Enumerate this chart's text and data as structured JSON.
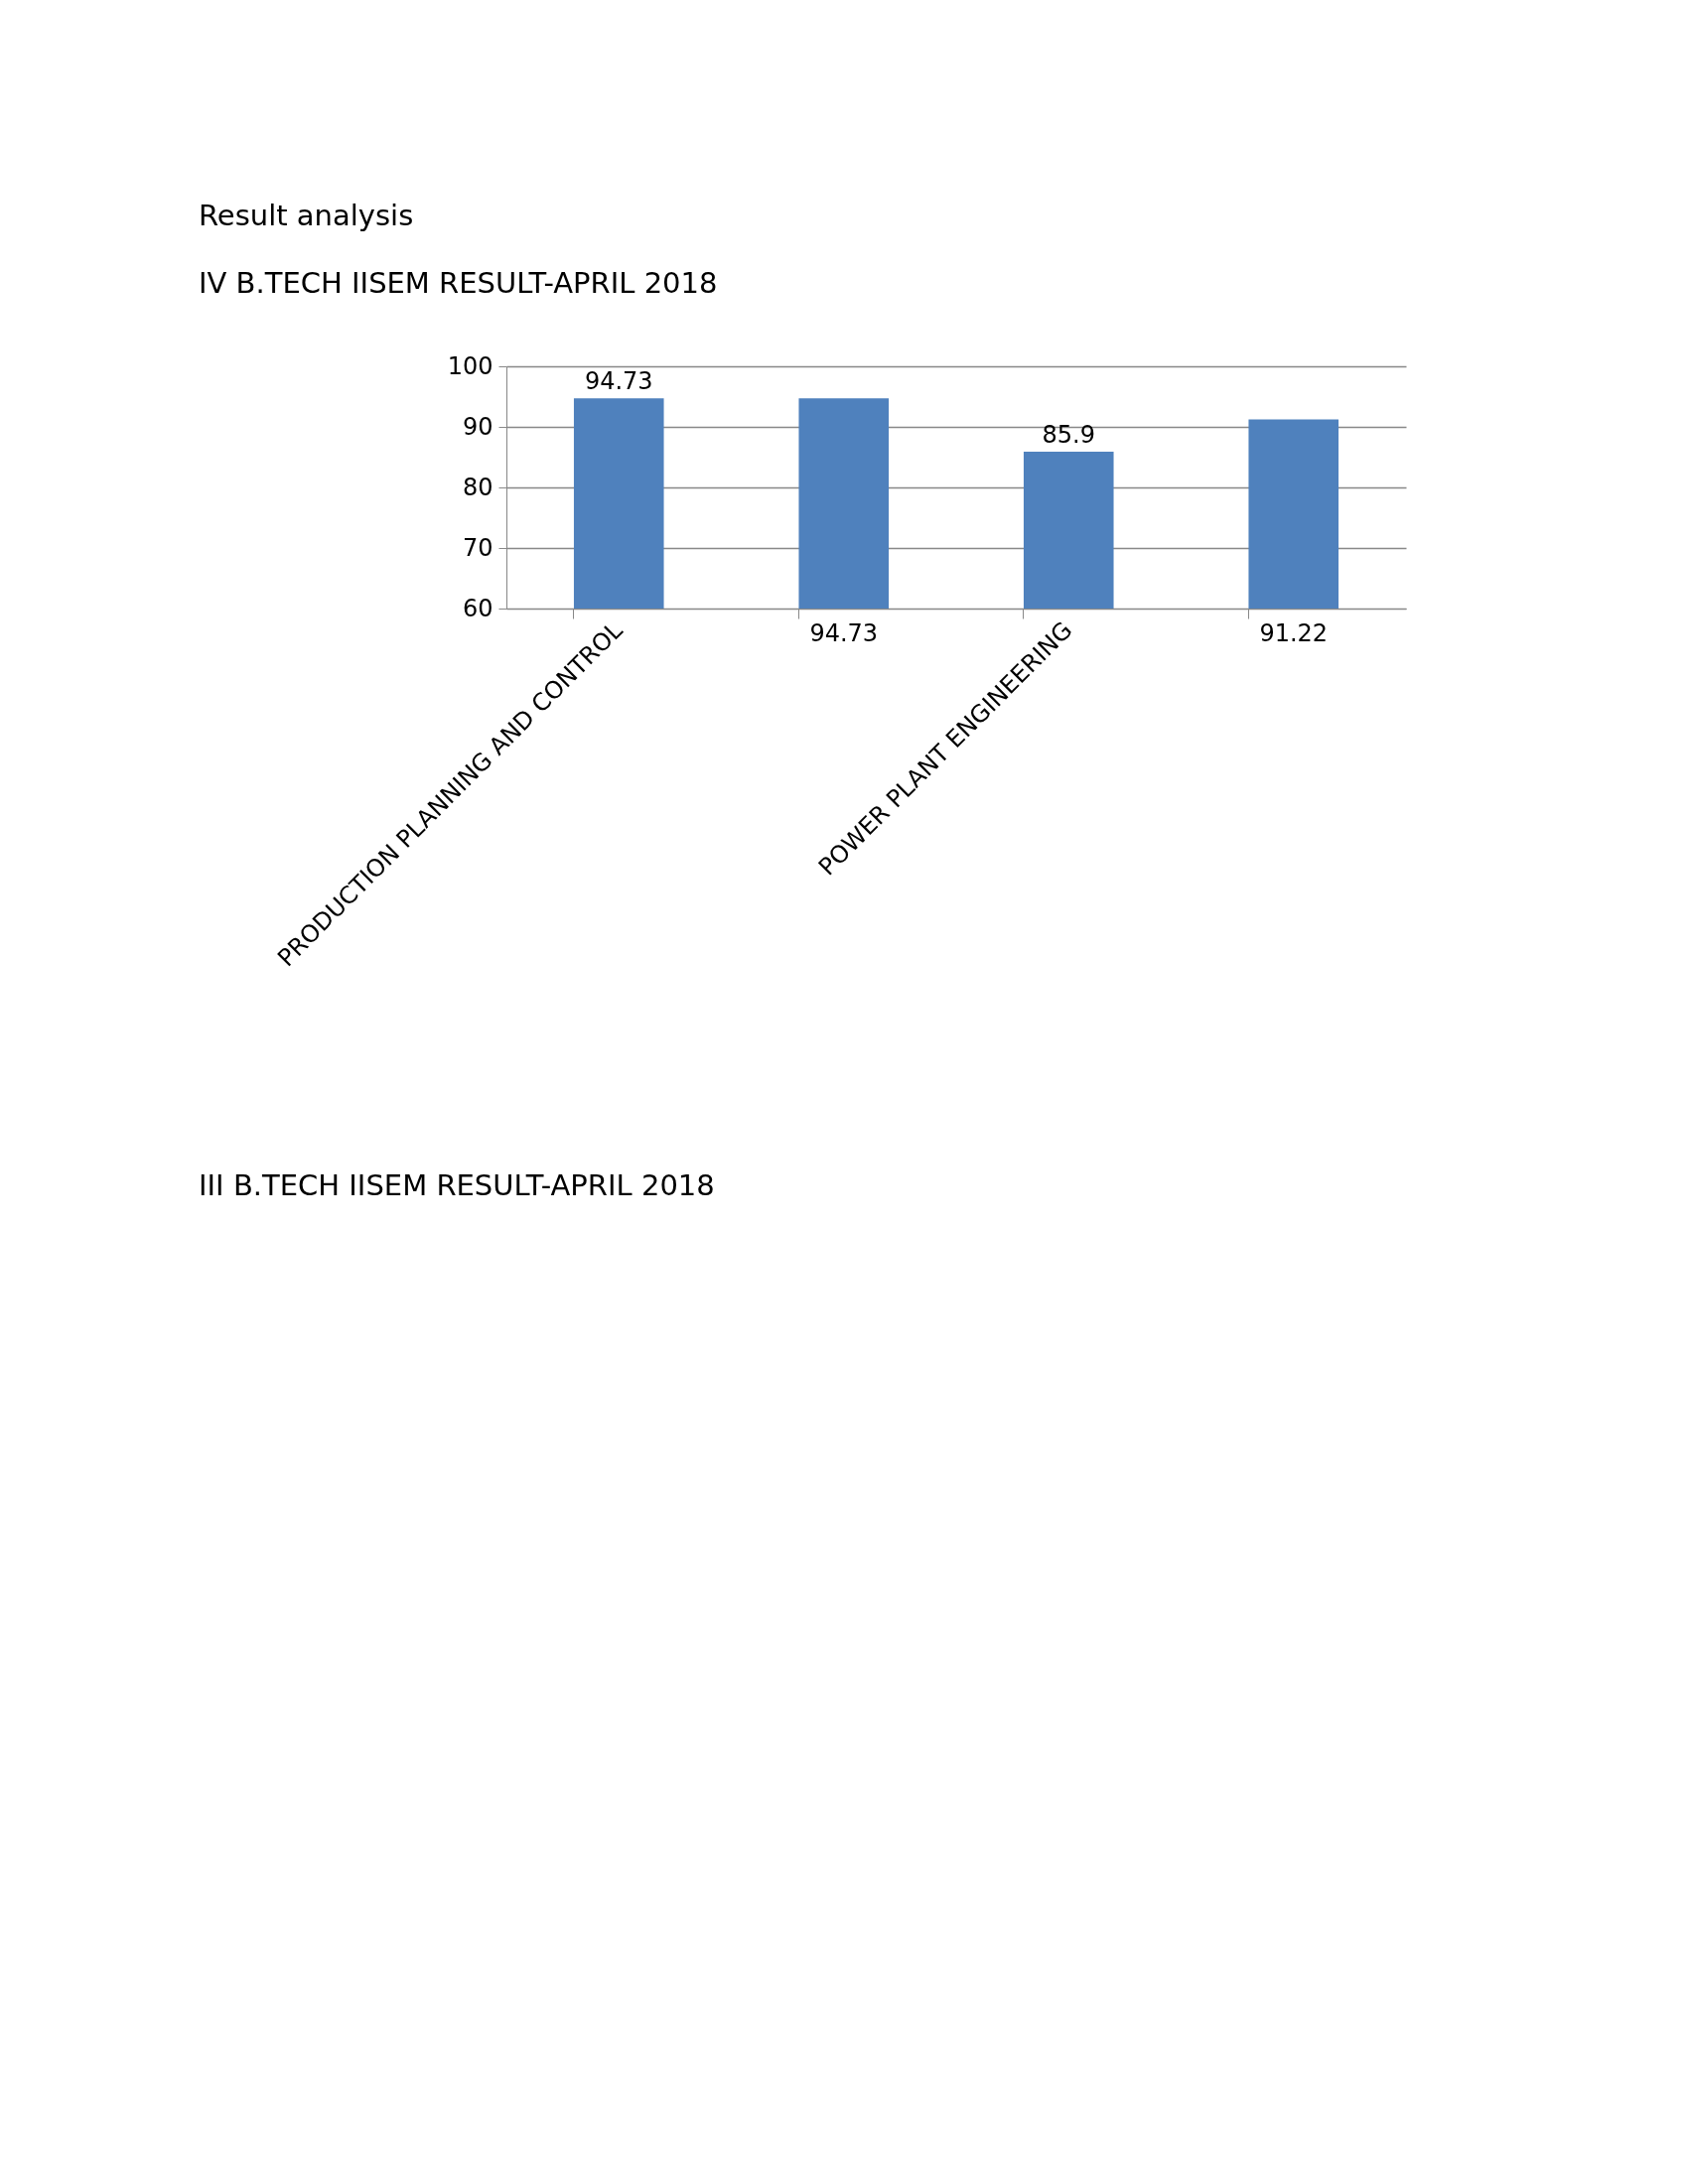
{
  "chart_data": {
    "type": "bar",
    "title": "Result analysis",
    "subtitle": "IV B.TECH IISEM RESULT-APRIL 2018",
    "categories": [
      "PRODUCTION PLANNING AND CONTROL",
      null,
      "POWER PLANT ENGINEERING",
      null
    ],
    "values": [
      94.73,
      94.73,
      85.9,
      91.22
    ],
    "color": "#4f81bd",
    "ylim": [
      60,
      100
    ],
    "yticks": [
      60,
      70,
      80,
      90,
      100
    ],
    "grid": "y",
    "data_labels": true,
    "annotations": [
      "III B.TECH IISEM RESULT-APRIL 2018"
    ]
  }
}
